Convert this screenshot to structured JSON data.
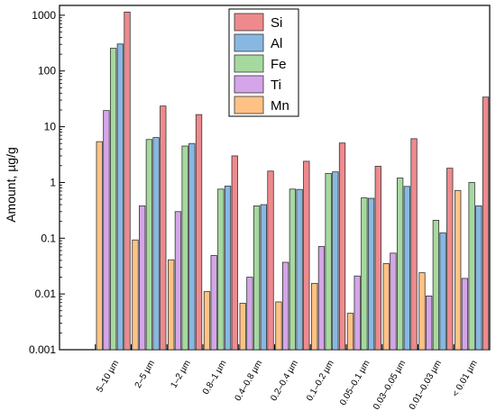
{
  "chart_data": {
    "type": "bar",
    "title": "",
    "xlabel": "",
    "ylabel": "Amount, µg/g",
    "yscale": "log",
    "ylim": [
      0.001,
      1500
    ],
    "yticks": [
      "0.001",
      "0.01",
      "0.1",
      "1",
      "10",
      "100",
      "1000"
    ],
    "grid": false,
    "legend_position": "top-center",
    "categories": [
      "5–10 µm",
      "2–5 µm",
      "1–2 µm",
      "0.8–1 µm",
      "0.4–0.8 µm",
      "0.2–0.4 µm",
      "0.1–0.2 µm",
      "0.05–0.1 µm",
      "0.03–0.05 µm",
      "0.01–0.03 µm",
      "< 0.01 µm"
    ],
    "series": [
      {
        "name": "Mn",
        "color": "#FFC285",
        "values": [
          5.4,
          0.093,
          0.041,
          0.011,
          0.0068,
          0.0072,
          0.0155,
          0.0045,
          0.035,
          0.024,
          0.72
        ]
      },
      {
        "name": "Ti",
        "color": "#D4A5E8",
        "values": [
          19.5,
          0.38,
          0.3,
          0.049,
          0.02,
          0.037,
          0.071,
          0.021,
          0.054,
          0.0092,
          0.019
        ]
      },
      {
        "name": "Fe",
        "color": "#A6D9A0",
        "values": [
          255,
          5.9,
          4.5,
          0.76,
          0.38,
          0.76,
          1.45,
          0.53,
          1.2,
          0.21,
          1.0
        ]
      },
      {
        "name": "Al",
        "color": "#88B8E2",
        "values": [
          305,
          6.4,
          5.0,
          0.86,
          0.4,
          0.75,
          1.55,
          0.52,
          0.85,
          0.125,
          0.38
        ]
      },
      {
        "name": "Si",
        "color": "#EE8A8E",
        "values": [
          1140,
          23.5,
          16.5,
          3.0,
          1.6,
          2.4,
          5.1,
          1.95,
          6.1,
          1.8,
          34
        ]
      }
    ],
    "legend_order": [
      "Si",
      "Al",
      "Fe",
      "Ti",
      "Mn"
    ]
  }
}
